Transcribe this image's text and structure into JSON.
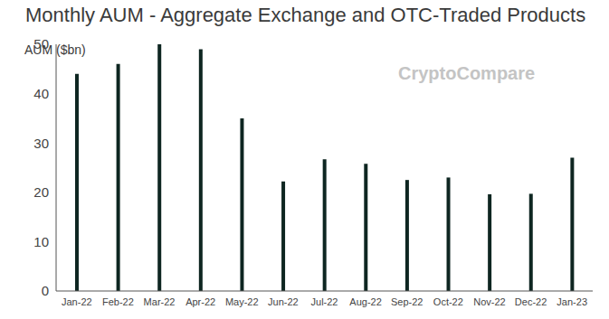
{
  "chart_data": {
    "type": "bar",
    "title": "Monthly AUM - Aggregate Exchange and OTC-Traded Products",
    "y_label": "AUM ($bn)",
    "annotations": [
      "CryptoCompare"
    ],
    "categories": [
      "Jan-22",
      "Feb-22",
      "Mar-22",
      "Apr-22",
      "May-22",
      "Jun-22",
      "Jul-22",
      "Aug-22",
      "Sep-22",
      "Oct-22",
      "Nov-22",
      "Dec-22",
      "Jan-23"
    ],
    "values": [
      44,
      46,
      50,
      49,
      35,
      22.2,
      26.7,
      25.8,
      22.5,
      23,
      19.6,
      19.7,
      27
    ],
    "color": "#0e2621",
    "ylim": [
      0,
      50
    ],
    "yticks": [
      0,
      10,
      20,
      30,
      40,
      50
    ],
    "grid": false
  }
}
